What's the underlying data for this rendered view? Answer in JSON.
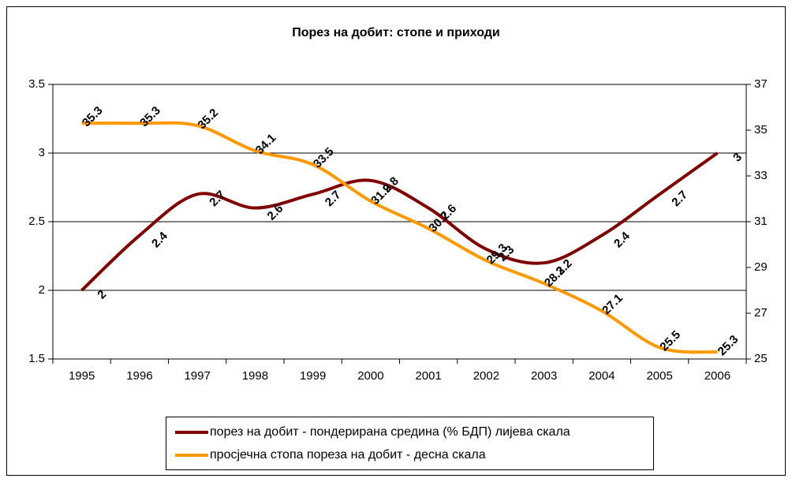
{
  "chart_data": {
    "type": "line",
    "title": "Порез на добит: стопе и приходи",
    "categories": [
      "1995",
      "1996",
      "1997",
      "1998",
      "1999",
      "2000",
      "2001",
      "2002",
      "2003",
      "2004",
      "2005",
      "2006"
    ],
    "series": [
      {
        "name": "порез на добит - пондерирана средина (% БДП) лијева скала",
        "color": "#800000",
        "values": [
          2,
          2.4,
          2.7,
          2.6,
          2.7,
          2.8,
          2.6,
          2.3,
          2.2,
          2.4,
          2.7,
          3
        ]
      },
      {
        "name": "просјечна стопа пореза на добит - десна скала",
        "color": "#ff9900",
        "axis": "y2",
        "values": [
          35.3,
          35.3,
          35.2,
          34.1,
          33.5,
          31.9,
          30.7,
          29.3,
          28.3,
          27.1,
          25.5,
          25.3
        ]
      }
    ],
    "ylim": [
      1.5,
      3.5
    ],
    "yticks": [
      1.5,
      2,
      2.5,
      3,
      3.5
    ],
    "y2lim": [
      25,
      37
    ],
    "y2ticks": [
      25,
      27,
      29,
      31,
      33,
      35,
      37
    ],
    "grid": true,
    "smooth": true
  }
}
